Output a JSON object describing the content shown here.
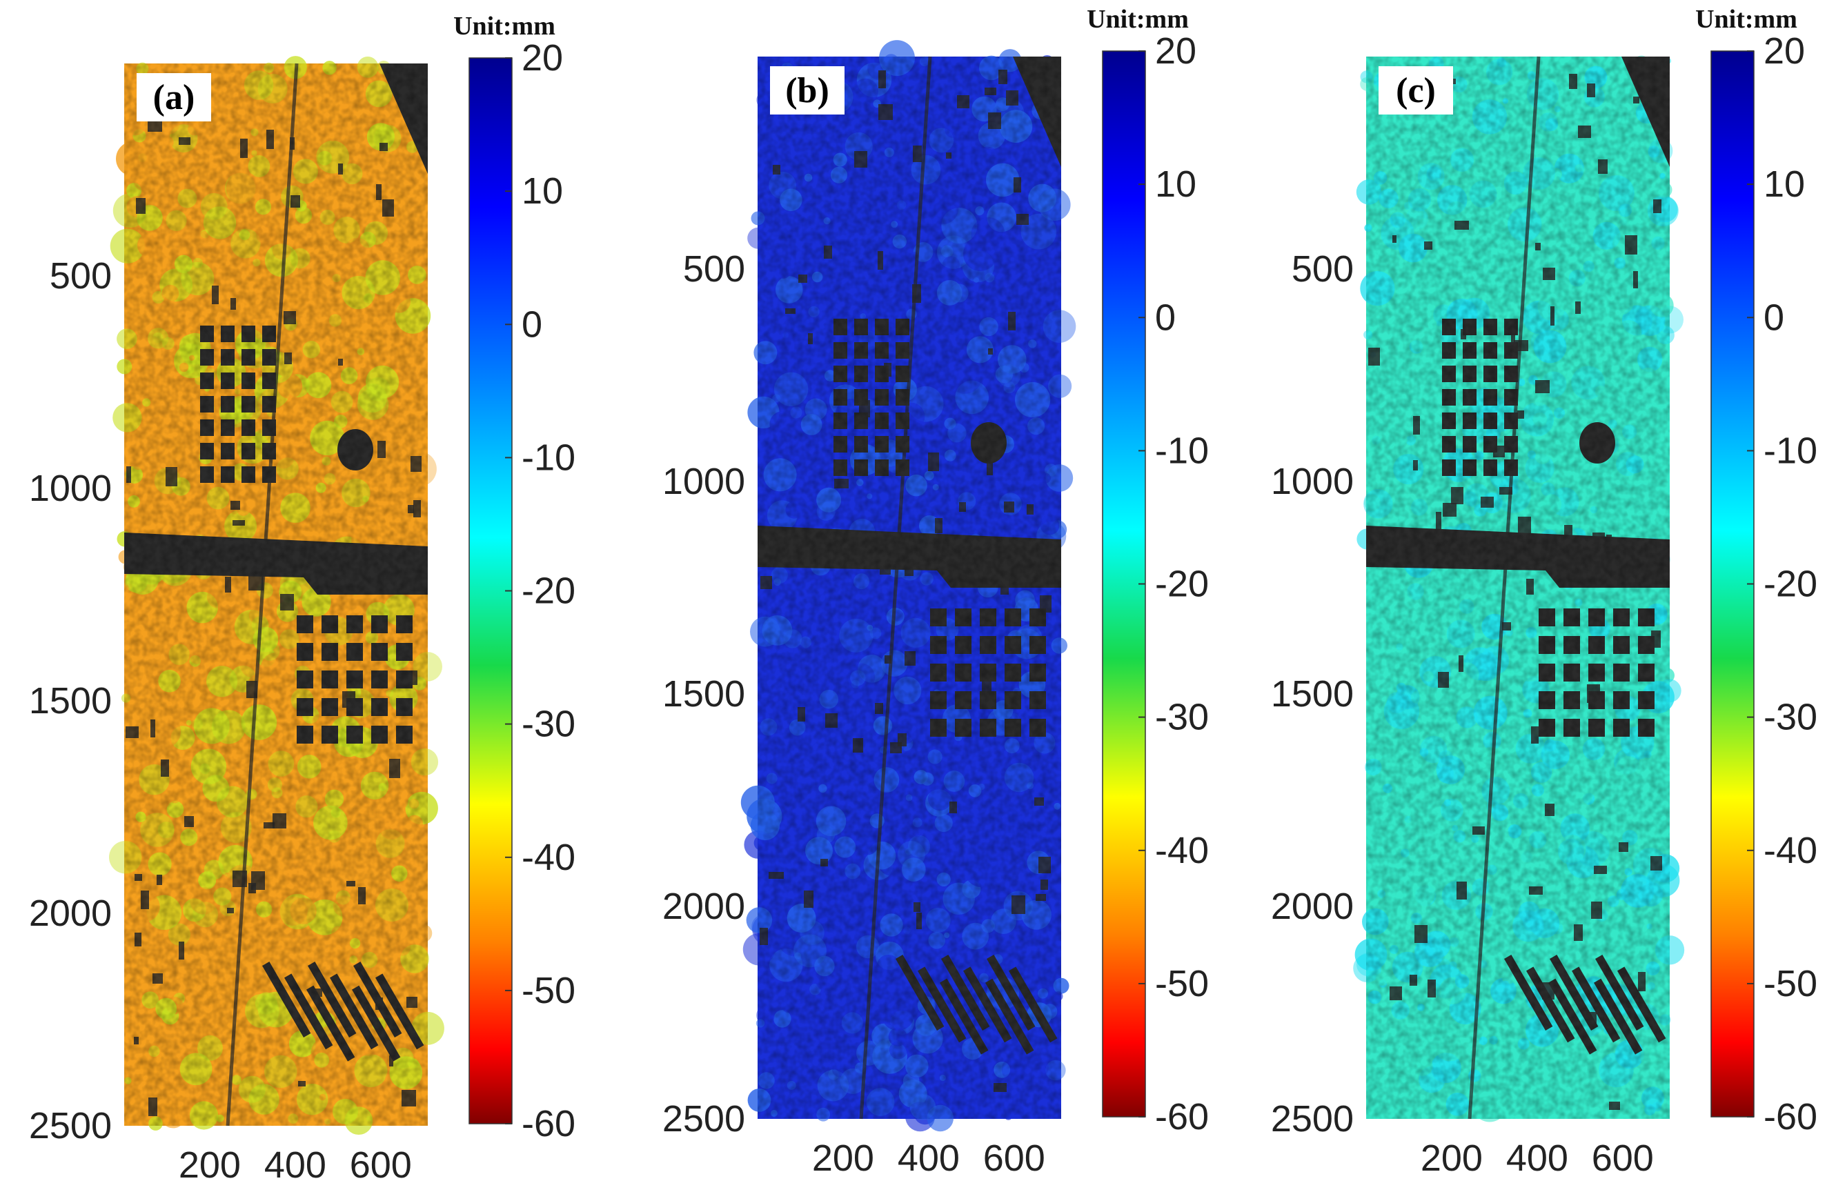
{
  "chart_data": [
    {
      "type": "heatmap",
      "panel_label": "(a)",
      "unit_label": "Unit:mm",
      "xticks": [
        200,
        400,
        600
      ],
      "yticks": [
        500,
        1000,
        1500,
        2000,
        2500
      ],
      "xlim": [
        0,
        710
      ],
      "ylim": [
        2500,
        0
      ],
      "colorbar": {
        "ticks": [
          20,
          10,
          0,
          -10,
          -20,
          -30,
          -40,
          -50,
          -60
        ],
        "range": [
          -60,
          20
        ],
        "colormap": "jet"
      },
      "dominant_value_range": [
        -40,
        -25
      ]
    },
    {
      "type": "heatmap",
      "panel_label": "(b)",
      "unit_label": "Unit:mm",
      "xticks": [
        200,
        400,
        600
      ],
      "yticks": [
        500,
        1000,
        1500,
        2000,
        2500
      ],
      "xlim": [
        0,
        710
      ],
      "ylim": [
        2500,
        0
      ],
      "colorbar": {
        "ticks": [
          20,
          10,
          0,
          -10,
          -20,
          -30,
          -40,
          -50,
          -60
        ],
        "range": [
          -60,
          20
        ],
        "colormap": "jet"
      },
      "dominant_value_range": [
        10,
        15
      ]
    },
    {
      "type": "heatmap",
      "panel_label": "(c)",
      "unit_label": "Unit:mm",
      "xticks": [
        200,
        400,
        600
      ],
      "yticks": [
        500,
        1000,
        1500,
        2000,
        2500
      ],
      "xlim": [
        0,
        710
      ],
      "ylim": [
        2500,
        0
      ],
      "colorbar": {
        "ticks": [
          20,
          10,
          0,
          -10,
          -20,
          -30,
          -40,
          -50,
          -60
        ],
        "range": [
          -60,
          20
        ],
        "colormap": "jet"
      },
      "dominant_value_range": [
        -18,
        -8
      ]
    }
  ],
  "colors": {
    "panel_a_base": "#f5a01e",
    "panel_a_alt": "#c8e020",
    "panel_b_base": "#1a2fd8",
    "panel_b_alt": "#2560e8",
    "panel_c_base": "#35e8c8",
    "panel_c_alt": "#20e0f0",
    "dark_features": "#2b2b2b"
  }
}
